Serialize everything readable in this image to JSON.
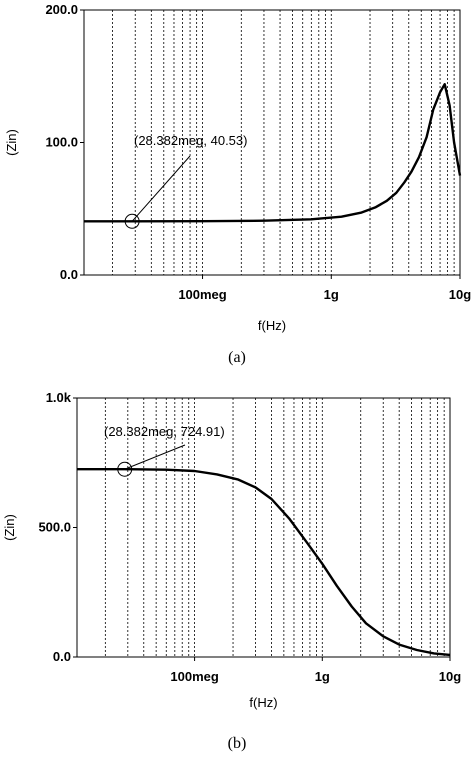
{
  "chart_data": [
    {
      "type": "line",
      "x_scale": "log",
      "xlim": [
        12000000,
        10000000000
      ],
      "ylim": [
        0,
        200
      ],
      "xlabel": "f(Hz)",
      "ylabel": "(Zin)",
      "x_ticks": [
        {
          "value": 100000000,
          "label": "100meg"
        },
        {
          "value": 1000000000,
          "label": "1g"
        },
        {
          "value": 10000000000,
          "label": "10g"
        }
      ],
      "y_ticks": [
        {
          "value": 0,
          "label": "0.0"
        },
        {
          "value": 100,
          "label": "100.0"
        },
        {
          "value": 200,
          "label": "200.0"
        }
      ],
      "x": [
        12000000,
        28382000,
        100000000,
        300000000,
        700000000,
        1200000000,
        1700000000,
        2200000000,
        2700000000,
        3200000000,
        3700000000,
        4200000000,
        4800000000,
        5500000000,
        6200000000,
        7000000000,
        7600000000,
        8300000000,
        9000000000,
        10000000000
      ],
      "series": [
        {
          "values": [
            40.5,
            40.53,
            40.6,
            41,
            42,
            44,
            47,
            51,
            56,
            62,
            70,
            78,
            89,
            104,
            125,
            138,
            144,
            128,
            100,
            75
          ]
        }
      ],
      "marker": {
        "x": 28382000,
        "y": 40.53,
        "label": "(28.382meg, 40.53)"
      },
      "caption": "(a)"
    },
    {
      "type": "line",
      "x_scale": "log",
      "xlim": [
        12000000,
        10000000000
      ],
      "ylim": [
        0,
        1000
      ],
      "xlabel": "f(Hz)",
      "ylabel": "(Zin)",
      "x_ticks": [
        {
          "value": 100000000,
          "label": "100meg"
        },
        {
          "value": 1000000000,
          "label": "1g"
        },
        {
          "value": 10000000000,
          "label": "10g"
        }
      ],
      "y_ticks": [
        {
          "value": 0,
          "label": "0.0"
        },
        {
          "value": 500,
          "label": "500.0"
        },
        {
          "value": 1000,
          "label": "1.0k"
        }
      ],
      "x": [
        12000000,
        28382000,
        60000000,
        100000000,
        150000000,
        220000000,
        300000000,
        400000000,
        550000000,
        750000000,
        1000000000,
        1300000000,
        1700000000,
        2200000000,
        3000000000,
        4000000000,
        5500000000,
        7500000000,
        10000000000
      ],
      "series": [
        {
          "values": [
            725,
            724.91,
            723,
            718,
            705,
            685,
            655,
            610,
            535,
            445,
            360,
            275,
            195,
            130,
            80,
            48,
            27,
            14,
            8
          ]
        }
      ],
      "marker": {
        "x": 28382000,
        "y": 724.91,
        "label": "(28.382meg, 724.91)"
      },
      "caption": "(b)"
    }
  ]
}
